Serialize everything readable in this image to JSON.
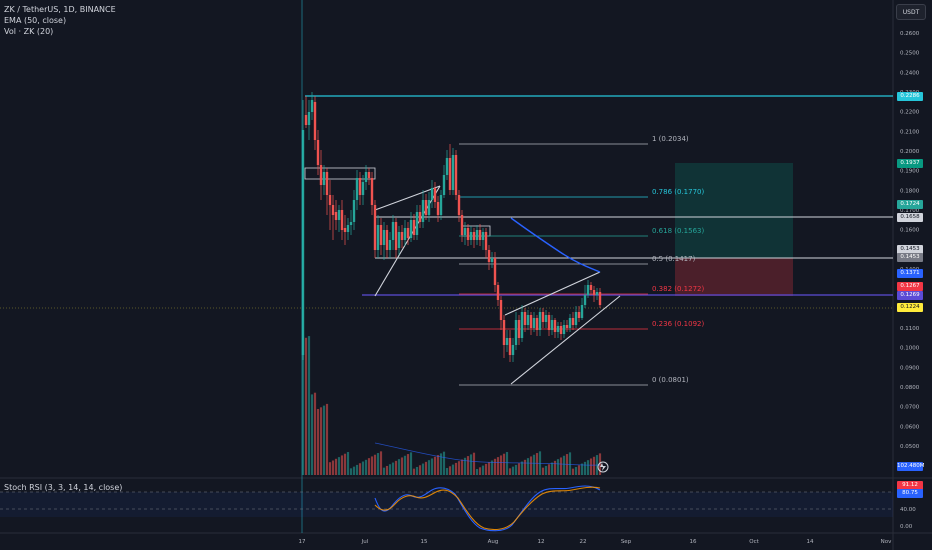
{
  "header": {
    "symbol_line": "ZK / TetherUS, 1D, BINANCE",
    "indicator_ema": "EMA (50, close)",
    "indicator_vol": "Vol · ZK (20)"
  },
  "currency_button": "USDT",
  "rsi": {
    "label": "Stoch RSI (3, 3, 14, 14, close)",
    "ticks": [
      "80.00",
      "40.00",
      "0.00"
    ],
    "value_k": "91.12",
    "value_d": "80.75"
  },
  "price_axis": {
    "ticks": [
      "0.2600",
      "0.2500",
      "0.2400",
      "0.2300",
      "0.2200",
      "0.2100",
      "0.2000",
      "0.1900",
      "0.1800",
      "0.1700",
      "0.1600",
      "0.1500",
      "0.1400",
      "0.1300",
      "0.1200",
      "0.1100",
      "0.1000",
      "0.0900",
      "0.0800",
      "0.0700",
      "0.0600",
      "0.0500"
    ]
  },
  "price_tags": [
    {
      "text": "0.2286",
      "color": "#26c6da"
    },
    {
      "text": "0.1937",
      "color": "#089981"
    },
    {
      "text": "0.1724",
      "color": "#26a69a"
    },
    {
      "text": "0.1658",
      "color": "#d1d4dc"
    },
    {
      "text": "0.1453",
      "color": "#d1d4dc"
    },
    {
      "text": "0.1453",
      "color": "#787b86"
    },
    {
      "text": "0.1371",
      "color": "#2962ff"
    },
    {
      "text": "0.1267",
      "color": "#f23645"
    },
    {
      "text": "0.1269",
      "color": "#5b4bd6"
    },
    {
      "text": "0.1224",
      "color": "#ffeb3b"
    },
    {
      "text": "102.480M",
      "color": "#2962ff"
    }
  ],
  "time_axis": {
    "labels": [
      "17",
      "Jul",
      "15",
      "Aug",
      "12",
      "22",
      "Sep",
      "16",
      "Oct",
      "14",
      "Nov"
    ]
  },
  "fib_levels": [
    {
      "ratio": "1 (0.2034)",
      "color": "#b2b5be"
    },
    {
      "ratio": "0.786 (0.1770)",
      "color": "#26c6da"
    },
    {
      "ratio": "0.618 (0.1563)",
      "color": "#26a69a"
    },
    {
      "ratio": "0.5 (0.1417)",
      "color": "#b2b5be"
    },
    {
      "ratio": "0.382 (0.1272)",
      "color": "#f23645"
    },
    {
      "ratio": "0.236 (0.1092)",
      "color": "#f23645"
    },
    {
      "ratio": "0 (0.0801)",
      "color": "#b2b5be"
    }
  ],
  "colors": {
    "bull": "#26a69a",
    "bear": "#ef5350",
    "ema": "#2962ff",
    "background": "#131722"
  }
}
